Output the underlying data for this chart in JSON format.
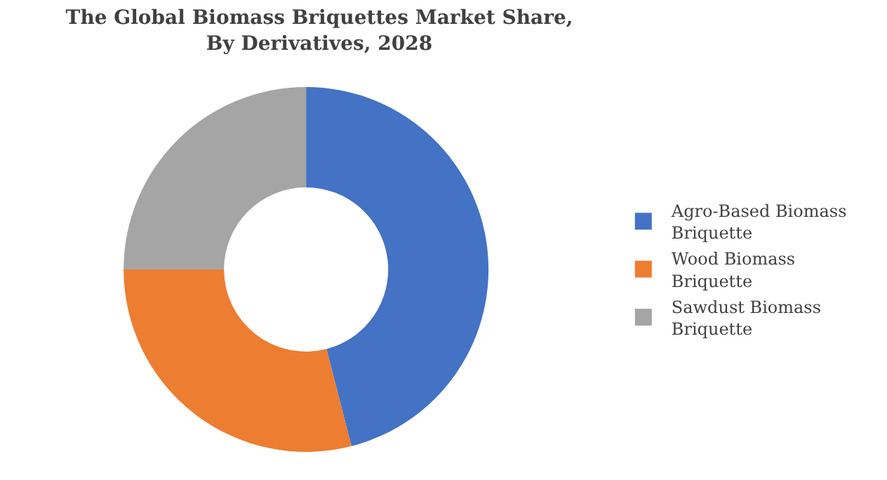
{
  "chart_data": {
    "type": "donut",
    "title": "The Global Biomass Briquettes Market Share,\nBy Derivatives, 2028",
    "categories": [
      "Agro-Based Biomass Briquette",
      "Wood Biomass Briquette",
      "Sawdust Biomass Briquette"
    ],
    "values": [
      46,
      29,
      25
    ],
    "colors": [
      "#4472c4",
      "#ed7d31",
      "#a5a5a5"
    ],
    "legend": "right"
  }
}
